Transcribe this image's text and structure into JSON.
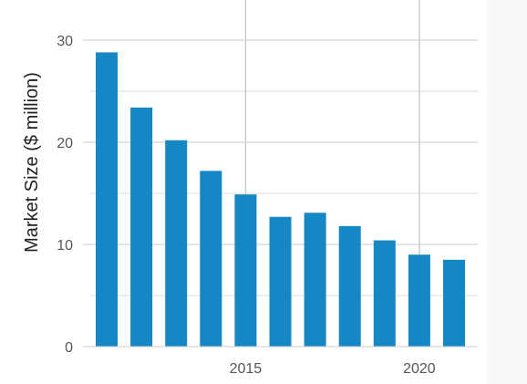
{
  "chart_data": {
    "type": "bar",
    "x": [
      2011,
      2012,
      2013,
      2014,
      2015,
      2016,
      2017,
      2018,
      2019,
      2020,
      2021
    ],
    "values": [
      28.8,
      23.4,
      20.2,
      17.2,
      14.9,
      12.7,
      13.1,
      11.8,
      10.4,
      9.0,
      8.5
    ],
    "xlabel": "",
    "ylabel": "Market Size ($ million)",
    "ylim": [
      0,
      33
    ],
    "yticks": [
      0,
      10,
      20,
      30
    ],
    "xticks": [
      2015,
      2020
    ],
    "grid": true,
    "colors": {
      "bar": "#1487c4",
      "grid": "#dcdcdc",
      "axis_line": "#cccccc",
      "plot_bg": "#ffffff",
      "page_bg": "#f7f7f7"
    }
  }
}
